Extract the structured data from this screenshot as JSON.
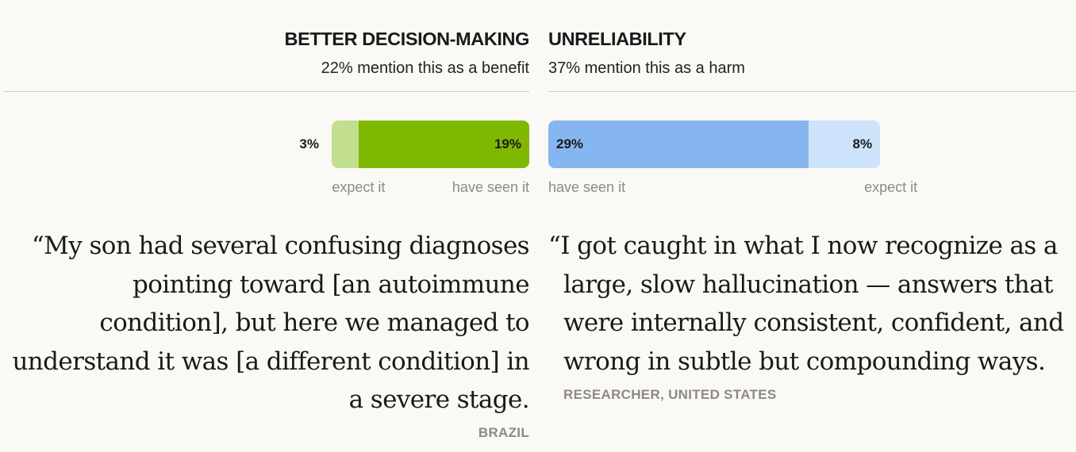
{
  "colors": {
    "benefit_dark": "#7fb800",
    "benefit_light": "#c1df8e",
    "harm_dark": "#86b6ef",
    "harm_light": "#cde2fb",
    "muted_text": "#8d8a84"
  },
  "chart_data": [
    {
      "type": "bar",
      "orientation": "horizontal",
      "stacked": true,
      "title": "BETTER DECISION-MAKING",
      "subtitle": "22% mention this as a benefit",
      "categories": [
        "expect it",
        "have seen it"
      ],
      "values": [
        3,
        19
      ],
      "labels": [
        "3%",
        "19%"
      ],
      "total": 22
    },
    {
      "type": "bar",
      "orientation": "horizontal",
      "stacked": true,
      "title": "UNRELIABILITY",
      "subtitle": "37% mention this as a harm",
      "categories": [
        "have seen it",
        "expect it"
      ],
      "values": [
        29,
        8
      ],
      "labels": [
        "29%",
        "8%"
      ],
      "total": 37
    }
  ],
  "quotes": {
    "left": {
      "text": "“My son had several confusing diagnoses pointing toward [an autoimmune condition], but here we managed to understand it was [a different condition] in a severe stage.",
      "attribution": "BRAZIL"
    },
    "right": {
      "text": "“I got caught in what I now recognize as a large, slow hallucination — answers that were internally consistent, confident, and wrong in subtle but compounding ways.",
      "attribution": "RESEARCHER, UNITED STATES"
    }
  }
}
